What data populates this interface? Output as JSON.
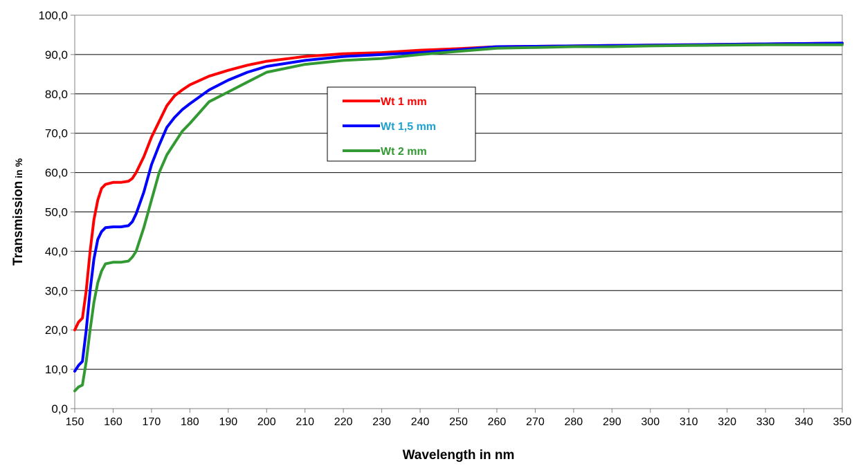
{
  "chart_data": {
    "type": "line",
    "xlabel": "Wavelength in nm",
    "ylabel_main": "Transmission",
    "ylabel_unit": " in %",
    "xlim": [
      150,
      350
    ],
    "ylim": [
      0,
      100
    ],
    "x_ticks": [
      150,
      160,
      170,
      180,
      190,
      200,
      210,
      220,
      230,
      240,
      250,
      260,
      270,
      280,
      290,
      300,
      310,
      320,
      330,
      340,
      350
    ],
    "y_ticks": [
      0,
      10,
      20,
      30,
      40,
      50,
      60,
      70,
      80,
      90,
      100
    ],
    "y_tick_labels": [
      "0,0",
      "10,0",
      "20,0",
      "30,0",
      "40,0",
      "50,0",
      "60,0",
      "70,0",
      "80,0",
      "90,0",
      "100,0"
    ],
    "grid": "horizontal",
    "legend_position": "center",
    "series": [
      {
        "name": "Wt 1 mm",
        "color": "#ff0000",
        "label_color": "#ff0000",
        "x": [
          150,
          151,
          152,
          153,
          154,
          155,
          156,
          157,
          158,
          160,
          162,
          164,
          165,
          166,
          168,
          170,
          172,
          174,
          176,
          178,
          180,
          185,
          190,
          195,
          200,
          210,
          220,
          230,
          240,
          250,
          260,
          270,
          280,
          290,
          300,
          310,
          320,
          330,
          340,
          350
        ],
        "y": [
          20,
          22,
          23,
          30,
          40,
          48,
          53,
          56,
          57,
          57.5,
          57.5,
          57.8,
          58.5,
          60,
          64,
          69,
          73,
          77,
          79.5,
          81,
          82.3,
          84.5,
          86,
          87.3,
          88.3,
          89.5,
          90.2,
          90.5,
          91.1,
          91.5,
          92,
          92.1,
          92.2,
          92.3,
          92.4,
          92.5,
          92.6,
          92.7,
          92.8,
          92.9
        ]
      },
      {
        "name": "Wt 1,5 mm",
        "color": "#0000ff",
        "label_color": "#1ea0d0",
        "x": [
          150,
          151,
          152,
          153,
          154,
          155,
          156,
          157,
          158,
          160,
          162,
          164,
          165,
          166,
          168,
          170,
          172,
          174,
          176,
          178,
          180,
          185,
          190,
          195,
          200,
          210,
          220,
          230,
          240,
          250,
          260,
          270,
          280,
          290,
          300,
          310,
          320,
          330,
          340,
          350
        ],
        "y": [
          9.5,
          11,
          12,
          20,
          30,
          38,
          43,
          45,
          46,
          46.2,
          46.2,
          46.5,
          47.5,
          49.5,
          55,
          62,
          67,
          71.5,
          74,
          76,
          77.5,
          81,
          83.5,
          85.5,
          87,
          88.5,
          89.5,
          90,
          90.5,
          91.2,
          92,
          92.1,
          92.2,
          92.3,
          92.4,
          92.5,
          92.6,
          92.7,
          92.8,
          92.9
        ]
      },
      {
        "name": "Wt 2 mm",
        "color": "#339933",
        "label_color": "#339933",
        "x": [
          150,
          151,
          152,
          153,
          154,
          155,
          156,
          157,
          158,
          160,
          162,
          164,
          165,
          166,
          168,
          170,
          172,
          174,
          176,
          178,
          180,
          185,
          190,
          195,
          200,
          210,
          220,
          230,
          240,
          250,
          260,
          270,
          280,
          290,
          300,
          310,
          320,
          330,
          340,
          350
        ],
        "y": [
          4.5,
          5.5,
          6,
          12,
          20,
          27,
          32,
          35,
          36.8,
          37.2,
          37.2,
          37.5,
          38.5,
          40,
          46,
          53,
          60,
          64.5,
          67.5,
          70.5,
          72.5,
          78,
          80.5,
          83,
          85.5,
          87.5,
          88.5,
          89,
          90,
          90.8,
          91.6,
          91.8,
          92,
          92,
          92.2,
          92.3,
          92.4,
          92.5,
          92.5,
          92.5
        ]
      }
    ]
  }
}
